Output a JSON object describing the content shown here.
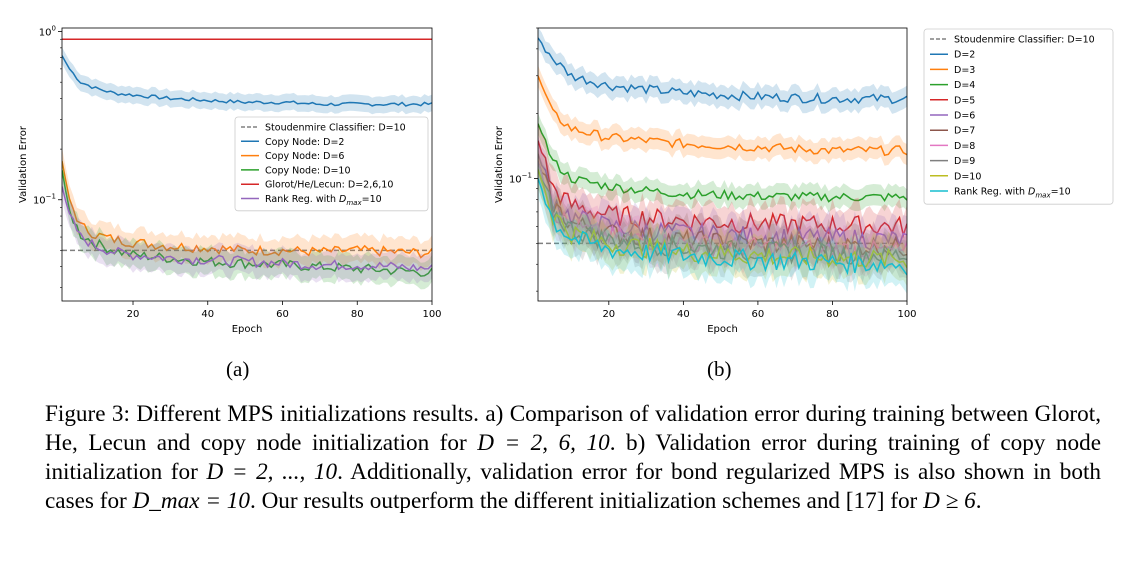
{
  "figure": {
    "caption": {
      "prefix": "Figure 3: Different MPS initializations results. a) Comparison of validation error during training between Glorot, He, Lecun and copy node initialization for ",
      "eq1": "D = 2, 6, 10",
      "mid1": ". b) Validation error during training of copy node initialization for ",
      "eq2": "D = 2, ..., 10",
      "mid2": ". Additionally, validation error for bond regularized MPS is also shown in both cases for ",
      "eq3": "D_max = 10",
      "mid3": ". Our results outperform the different initialization schemes and [17] for ",
      "eq4": "D ≥ 6",
      "suffix": "."
    },
    "sublabels": [
      "(a)",
      "(b)"
    ]
  },
  "chart_data": [
    {
      "type": "line",
      "xlabel": "Epoch",
      "ylabel": "Validation Error",
      "xlim": [
        1,
        100
      ],
      "ylim": [
        0.025,
        1.05
      ],
      "yscale": "log",
      "xticks": [
        20,
        40,
        60,
        80,
        100
      ],
      "ytick_labels": [
        {
          "base": "10",
          "exp": "0",
          "value": 1
        },
        {
          "base": "10",
          "exp": "−1",
          "value": 0.1
        }
      ],
      "legend": "center-right",
      "series": [
        {
          "name": "Stoudenmire Classifier: D=10",
          "color": "#808080",
          "dashed": true,
          "band": false,
          "points": [
            [
              1,
              0.05
            ],
            [
              100,
              0.05
            ]
          ]
        },
        {
          "name": "Copy Node: D=2",
          "color": "#1f77b4",
          "dashed": false,
          "band": true,
          "points": [
            [
              1,
              0.72
            ],
            [
              3,
              0.6
            ],
            [
              6,
              0.5
            ],
            [
              10,
              0.46
            ],
            [
              15,
              0.43
            ],
            [
              20,
              0.42
            ],
            [
              30,
              0.4
            ],
            [
              40,
              0.39
            ],
            [
              50,
              0.38
            ],
            [
              60,
              0.38
            ],
            [
              70,
              0.37
            ],
            [
              80,
              0.37
            ],
            [
              90,
              0.37
            ],
            [
              100,
              0.37
            ]
          ]
        },
        {
          "name": "Copy Node: D=6",
          "color": "#ff7f0e",
          "dashed": false,
          "band": true,
          "points": [
            [
              1,
              0.17
            ],
            [
              3,
              0.1
            ],
            [
              6,
              0.07
            ],
            [
              10,
              0.062
            ],
            [
              15,
              0.058
            ],
            [
              20,
              0.056
            ],
            [
              30,
              0.053
            ],
            [
              40,
              0.052
            ],
            [
              50,
              0.05
            ],
            [
              60,
              0.05
            ],
            [
              70,
              0.049
            ],
            [
              80,
              0.05
            ],
            [
              90,
              0.049
            ],
            [
              100,
              0.048
            ]
          ]
        },
        {
          "name": "Copy Node: D=10",
          "color": "#2ca02c",
          "dashed": false,
          "band": true,
          "points": [
            [
              1,
              0.15
            ],
            [
              3,
              0.085
            ],
            [
              6,
              0.062
            ],
            [
              10,
              0.055
            ],
            [
              15,
              0.05
            ],
            [
              20,
              0.047
            ],
            [
              30,
              0.045
            ],
            [
              40,
              0.043
            ],
            [
              50,
              0.042
            ],
            [
              60,
              0.041
            ],
            [
              70,
              0.04
            ],
            [
              80,
              0.039
            ],
            [
              90,
              0.038
            ],
            [
              100,
              0.037
            ]
          ]
        },
        {
          "name": "Glorot/He/Lecun: D=2,6,10",
          "color": "#d62728",
          "dashed": false,
          "band": false,
          "points": [
            [
              1,
              0.9
            ],
            [
              100,
              0.9
            ]
          ]
        },
        {
          "name": "Rank Reg. with D_max=10",
          "color": "#9467bd",
          "dashed": false,
          "band": true,
          "points": [
            [
              1,
              0.12
            ],
            [
              3,
              0.08
            ],
            [
              6,
              0.06
            ],
            [
              10,
              0.053
            ],
            [
              15,
              0.049
            ],
            [
              20,
              0.047
            ],
            [
              30,
              0.045
            ],
            [
              40,
              0.044
            ],
            [
              50,
              0.043
            ],
            [
              60,
              0.042
            ],
            [
              70,
              0.041
            ],
            [
              80,
              0.041
            ],
            [
              90,
              0.04
            ],
            [
              100,
              0.039
            ]
          ]
        }
      ]
    },
    {
      "type": "line",
      "xlabel": "Epoch",
      "ylabel": "Validation Error",
      "xlim": [
        1,
        100
      ],
      "ylim": [
        0.027,
        0.5
      ],
      "yscale": "log",
      "xticks": [
        20,
        40,
        60,
        80,
        100
      ],
      "ytick_labels": [
        {
          "base": "10",
          "exp": "−1",
          "value": 0.1
        }
      ],
      "legend": "outside-right",
      "series": [
        {
          "name": "Stoudenmire Classifier: D=10",
          "color": "#808080",
          "dashed": true,
          "band": false,
          "points": [
            [
              1,
              0.05
            ],
            [
              100,
              0.05
            ]
          ]
        },
        {
          "name": "D=2",
          "color": "#1f77b4",
          "dashed": false,
          "band": true,
          "points": [
            [
              1,
              0.45
            ],
            [
              5,
              0.36
            ],
            [
              10,
              0.3
            ],
            [
              20,
              0.27
            ],
            [
              30,
              0.26
            ],
            [
              40,
              0.25
            ],
            [
              60,
              0.24
            ],
            [
              80,
              0.235
            ],
            [
              100,
              0.235
            ]
          ]
        },
        {
          "name": "D=3",
          "color": "#ff7f0e",
          "dashed": false,
          "band": true,
          "points": [
            [
              1,
              0.3
            ],
            [
              5,
              0.2
            ],
            [
              10,
              0.17
            ],
            [
              20,
              0.155
            ],
            [
              30,
              0.15
            ],
            [
              40,
              0.145
            ],
            [
              60,
              0.14
            ],
            [
              80,
              0.135
            ],
            [
              100,
              0.135
            ]
          ]
        },
        {
          "name": "D=4",
          "color": "#2ca02c",
          "dashed": false,
          "band": true,
          "points": [
            [
              1,
              0.18
            ],
            [
              5,
              0.12
            ],
            [
              10,
              0.1
            ],
            [
              20,
              0.092
            ],
            [
              30,
              0.088
            ],
            [
              40,
              0.085
            ],
            [
              60,
              0.083
            ],
            [
              80,
              0.082
            ],
            [
              100,
              0.082
            ]
          ]
        },
        {
          "name": "D=5",
          "color": "#d62728",
          "dashed": false,
          "band": true,
          "points": [
            [
              1,
              0.15
            ],
            [
              5,
              0.09
            ],
            [
              10,
              0.075
            ],
            [
              20,
              0.068
            ],
            [
              30,
              0.066
            ],
            [
              40,
              0.064
            ],
            [
              60,
              0.062
            ],
            [
              80,
              0.061
            ],
            [
              100,
              0.06
            ]
          ]
        },
        {
          "name": "D=6",
          "color": "#9467bd",
          "dashed": false,
          "band": true,
          "points": [
            [
              1,
              0.13
            ],
            [
              5,
              0.08
            ],
            [
              10,
              0.066
            ],
            [
              20,
              0.06
            ],
            [
              40,
              0.056
            ],
            [
              60,
              0.054
            ],
            [
              80,
              0.053
            ],
            [
              100,
              0.052
            ]
          ]
        },
        {
          "name": "D=7",
          "color": "#8c564b",
          "dashed": false,
          "band": true,
          "points": [
            [
              1,
              0.12
            ],
            [
              5,
              0.075
            ],
            [
              10,
              0.062
            ],
            [
              20,
              0.056
            ],
            [
              40,
              0.052
            ],
            [
              60,
              0.05
            ],
            [
              80,
              0.049
            ],
            [
              100,
              0.048
            ]
          ]
        },
        {
          "name": "D=8",
          "color": "#e377c2",
          "dashed": false,
          "band": true,
          "points": [
            [
              1,
              0.12
            ],
            [
              5,
              0.072
            ],
            [
              10,
              0.06
            ],
            [
              20,
              0.054
            ],
            [
              40,
              0.05
            ],
            [
              60,
              0.048
            ],
            [
              80,
              0.047
            ],
            [
              100,
              0.046
            ]
          ]
        },
        {
          "name": "D=9",
          "color": "#7f7f7f",
          "dashed": false,
          "band": true,
          "points": [
            [
              1,
              0.11
            ],
            [
              5,
              0.07
            ],
            [
              10,
              0.058
            ],
            [
              20,
              0.052
            ],
            [
              40,
              0.048
            ],
            [
              60,
              0.046
            ],
            [
              80,
              0.045
            ],
            [
              100,
              0.044
            ]
          ]
        },
        {
          "name": "D=10",
          "color": "#bcbd22",
          "dashed": false,
          "band": true,
          "points": [
            [
              1,
              0.11
            ],
            [
              5,
              0.068
            ],
            [
              10,
              0.056
            ],
            [
              20,
              0.05
            ],
            [
              40,
              0.046
            ],
            [
              60,
              0.044
            ],
            [
              80,
              0.043
            ],
            [
              100,
              0.042
            ]
          ]
        },
        {
          "name": "Rank Reg. with D_max=10",
          "color": "#17becf",
          "dashed": false,
          "band": true,
          "points": [
            [
              1,
              0.1
            ],
            [
              5,
              0.064
            ],
            [
              10,
              0.053
            ],
            [
              20,
              0.047
            ],
            [
              40,
              0.044
            ],
            [
              60,
              0.042
            ],
            [
              80,
              0.041
            ],
            [
              100,
              0.04
            ]
          ]
        }
      ]
    }
  ]
}
